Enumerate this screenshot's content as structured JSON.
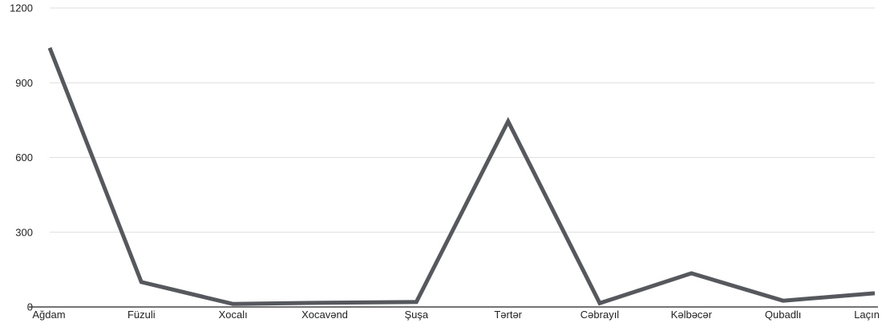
{
  "chart_data": {
    "type": "line",
    "title": "",
    "xlabel": "",
    "ylabel": "",
    "categories": [
      "Ağdam",
      "Füzuli",
      "Xocalı",
      "Xocavənd",
      "Şuşa",
      "Tərtər",
      "Cəbrayıl",
      "Kəlbəcər",
      "Qubadlı",
      "Laçın"
    ],
    "series": [
      {
        "values": [
          1040,
          100,
          12,
          17,
          20,
          745,
          15,
          135,
          25,
          55
        ],
        "color": "#55585d"
      }
    ],
    "ylim": [
      0,
      1200
    ],
    "yticks": [
      "0",
      "300",
      "600",
      "900",
      "1200"
    ],
    "grid": true,
    "legend": "none"
  }
}
